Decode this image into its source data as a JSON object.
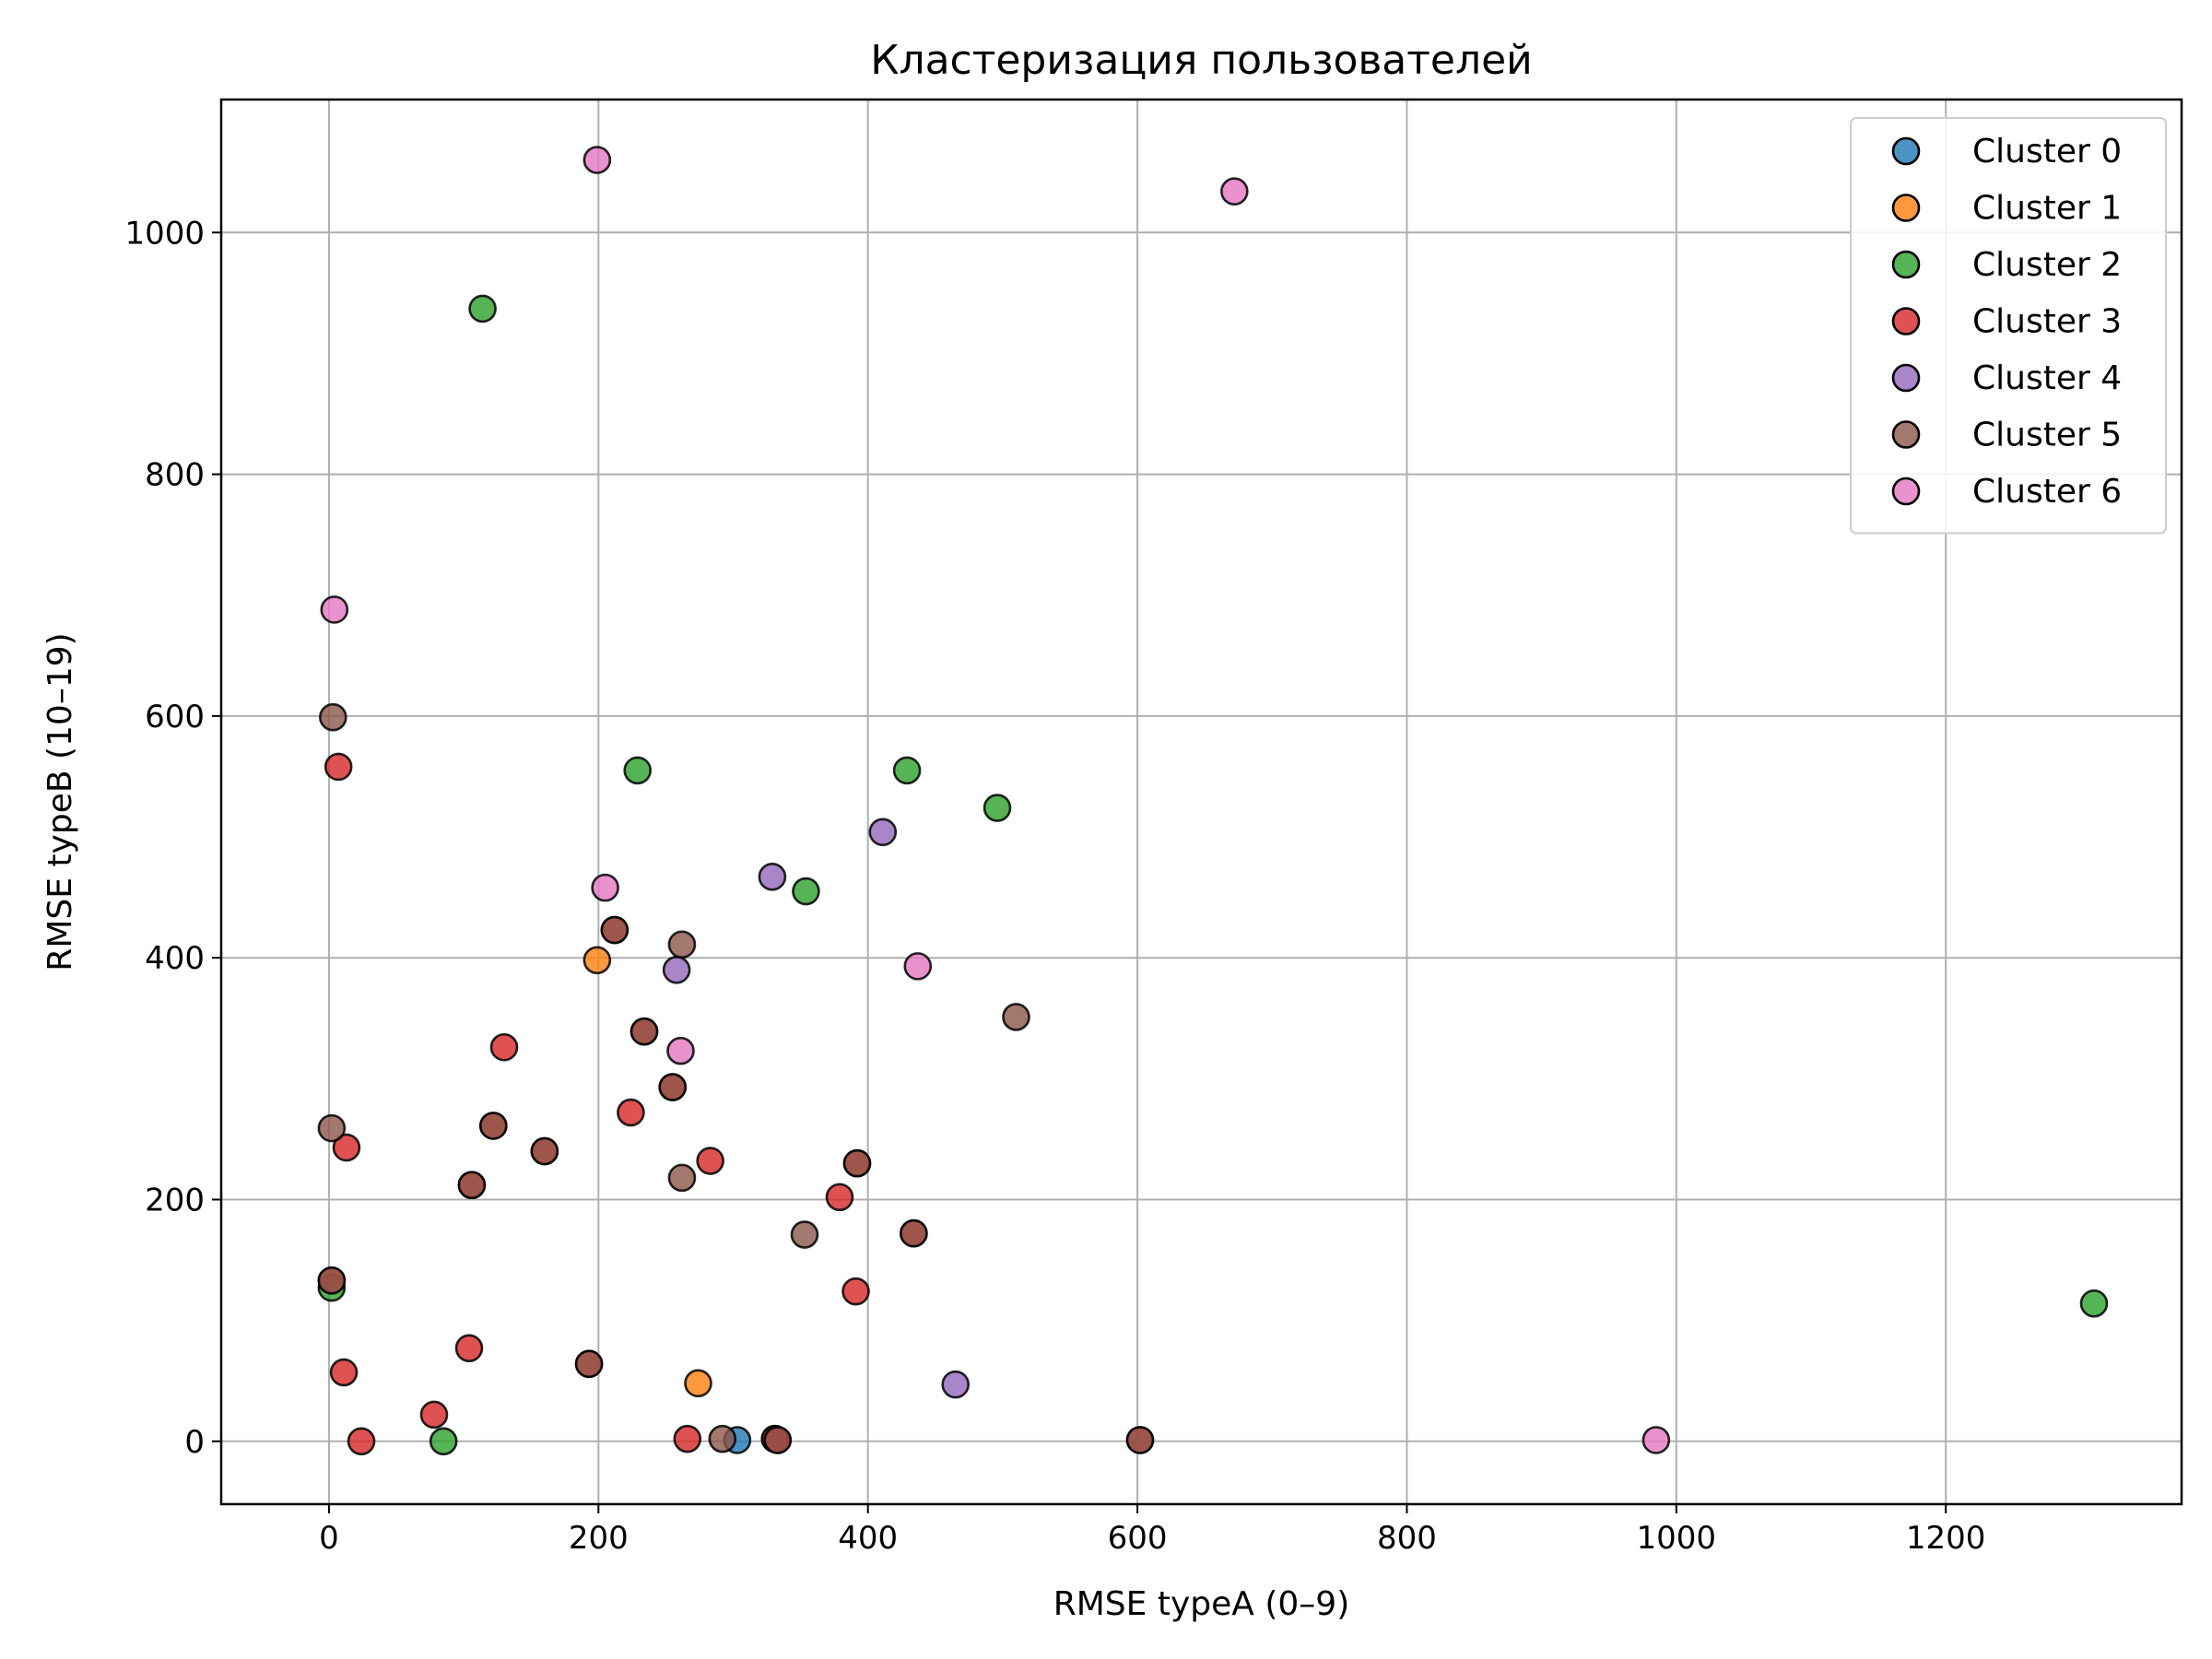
{
  "chart_data": {
    "type": "scatter",
    "title": "Кластеризация пользователей",
    "xlabel": "RMSE typeA (0–9)",
    "ylabel": "RMSE typeB (10–19)",
    "xlim": [
      -80,
      1375
    ],
    "ylim": [
      -52,
      1110
    ],
    "xticks": [
      0,
      200,
      400,
      600,
      800,
      1000,
      1200
    ],
    "yticks": [
      0,
      200,
      400,
      600,
      800,
      1000
    ],
    "xtick_labels": [
      "0",
      "200",
      "400",
      "600",
      "800",
      "1000",
      "1200"
    ],
    "ytick_labels": [
      "0",
      "200",
      "400",
      "600",
      "800",
      "1000"
    ],
    "grid": true,
    "legend_position": "top-right",
    "series": [
      {
        "name": "Cluster 0",
        "color": "#1f77b4",
        "points": [
          [
            303,
            1
          ],
          [
            331,
            2
          ]
        ]
      },
      {
        "name": "Cluster 1",
        "color": "#ff7f0e",
        "points": [
          [
            199,
            398
          ],
          [
            274,
            48
          ]
        ]
      },
      {
        "name": "Cluster 2",
        "color": "#2ca02c",
        "points": [
          [
            114,
            937
          ],
          [
            229,
            555
          ],
          [
            429,
            555
          ],
          [
            496,
            524
          ],
          [
            354,
            455
          ],
          [
            2,
            127
          ],
          [
            85,
            0
          ],
          [
            1310,
            114
          ]
        ]
      },
      {
        "name": "Cluster 3",
        "color": "#d62728",
        "points": [
          [
            7,
            558
          ],
          [
            13,
            243
          ],
          [
            130,
            326
          ],
          [
            224,
            272
          ],
          [
            283,
            232
          ],
          [
            379,
            202
          ],
          [
            391,
            124
          ],
          [
            104,
            77
          ],
          [
            11,
            57
          ],
          [
            78,
            22
          ],
          [
            24,
            0
          ],
          [
            266,
            2
          ],
          [
            331,
            2
          ],
          [
            434,
            172
          ],
          [
            392,
            230
          ],
          [
            122,
            261
          ],
          [
            160,
            240
          ],
          [
            106,
            212
          ],
          [
            212,
            423
          ],
          [
            234,
            339
          ],
          [
            255,
            293
          ],
          [
            193,
            64
          ],
          [
            2,
            133
          ],
          [
            602,
            1
          ],
          [
            333,
            1
          ]
        ]
      },
      {
        "name": "Cluster 4",
        "color": "#9467bd",
        "points": [
          [
            411,
            504
          ],
          [
            329,
            467
          ],
          [
            258,
            390
          ],
          [
            465,
            47
          ]
        ]
      },
      {
        "name": "Cluster 5",
        "color": "#8c564b",
        "points": [
          [
            3,
            599
          ],
          [
            262,
            411
          ],
          [
            234,
            339
          ],
          [
            510,
            351
          ],
          [
            255,
            293
          ],
          [
            2,
            259
          ],
          [
            212,
            423
          ],
          [
            122,
            261
          ],
          [
            160,
            240
          ],
          [
            106,
            212
          ],
          [
            262,
            218
          ],
          [
            353,
            171
          ],
          [
            434,
            172
          ],
          [
            392,
            230
          ],
          [
            2,
            133
          ],
          [
            193,
            64
          ],
          [
            292,
            2
          ],
          [
            333,
            1
          ],
          [
            602,
            1
          ]
        ]
      },
      {
        "name": "Cluster 6",
        "color": "#e377c2",
        "points": [
          [
            199,
            1060
          ],
          [
            672,
            1034
          ],
          [
            4,
            688
          ],
          [
            205,
            458
          ],
          [
            261,
            323
          ],
          [
            437,
            393
          ],
          [
            985,
            1
          ]
        ]
      }
    ]
  }
}
